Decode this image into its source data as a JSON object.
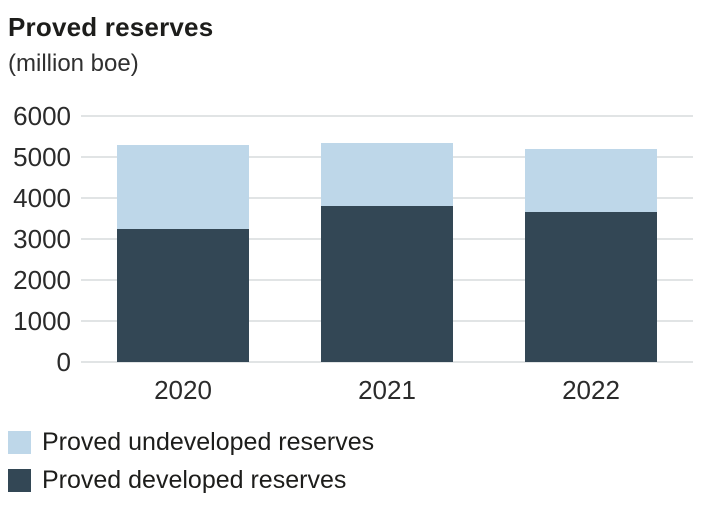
{
  "title": "Proved reserves",
  "subtitle": "(million boe)",
  "chart_data": {
    "type": "bar",
    "stacked": true,
    "title": "Proved reserves",
    "unit_label": "(million boe)",
    "categories": [
      "2020",
      "2021",
      "2022"
    ],
    "series": [
      {
        "name": "Proved developed reserves",
        "values": [
          3250,
          3800,
          3650
        ],
        "color": "#334755",
        "stack_position": "bottom"
      },
      {
        "name": "Proved undeveloped reserves",
        "values": [
          2050,
          1550,
          1550
        ],
        "color": "#bed7e9",
        "stack_position": "top"
      }
    ],
    "totals": [
      5300,
      5350,
      5200
    ],
    "ylim": [
      0,
      6000
    ],
    "ytick_interval": 1000,
    "ytick_labels": [
      "0",
      "1000",
      "2000",
      "3000",
      "4000",
      "5000",
      "6000"
    ],
    "grid": true,
    "gridline_color": "#e1e4e5",
    "legend_position": "bottom-left"
  },
  "legend": {
    "items": [
      {
        "label": "Proved undeveloped reserves",
        "color": "#bed7e9"
      },
      {
        "label": "Proved developed reserves",
        "color": "#334755"
      }
    ]
  }
}
